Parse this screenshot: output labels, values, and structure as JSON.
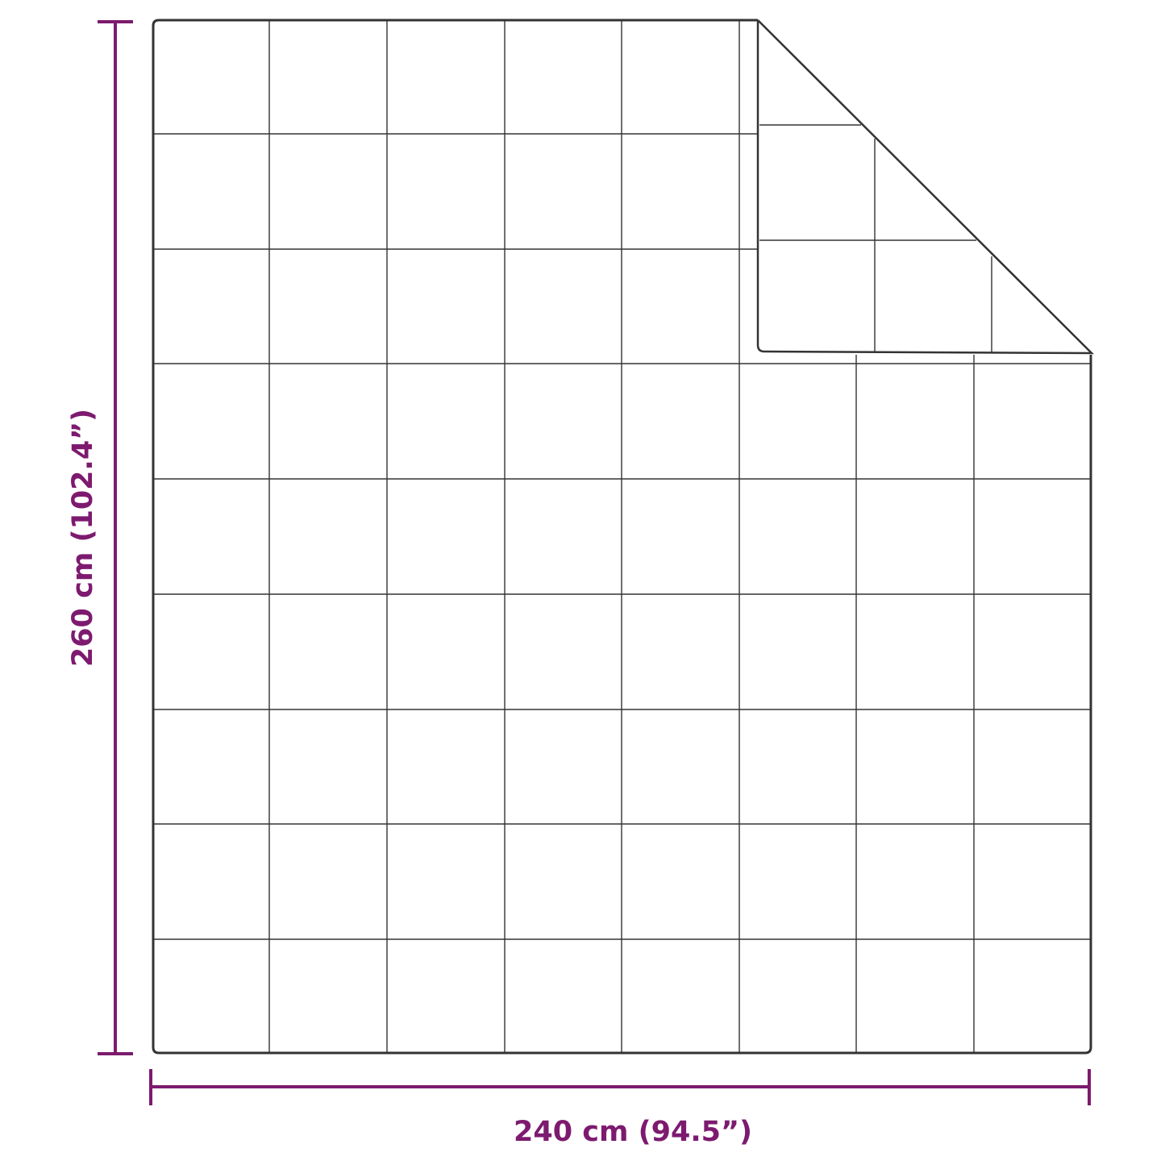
{
  "dimensions": {
    "width_label": "240 cm (94.5”)",
    "height_label": "260 cm (102.4”)"
  },
  "colors": {
    "dimension_line": "#7d1a6f",
    "outline": "#333333",
    "background": "#ffffff"
  },
  "blanket": {
    "pattern": "square-quilted grid",
    "columns": 8,
    "rows": 9,
    "corner": "top-right corner folded over"
  }
}
